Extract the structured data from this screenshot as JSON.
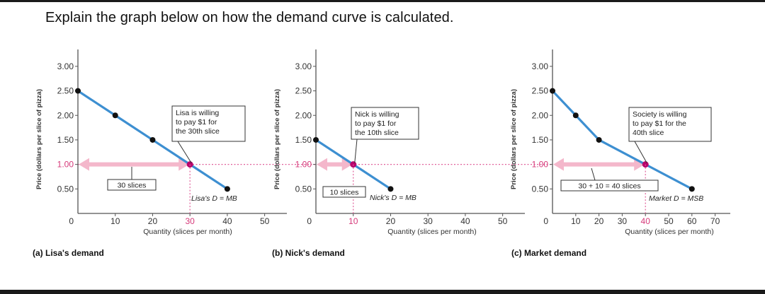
{
  "question": "Explain the graph below on how the demand curve is calculated.",
  "colors": {
    "curve": "#3d8fd1",
    "point": "#111111",
    "highlight_point": "#b8006b",
    "arrow": "#f4b7cb",
    "price_line": "#e0609a",
    "price_label": "#d63a7a",
    "quantity_highlight": "#d63a7a"
  },
  "chart_data": [
    {
      "type": "line",
      "panel_label": "(a) Lisa's demand",
      "ylabel": "Price (dollars per slice of pizza)",
      "xlabel": "Quantity (slices per month)",
      "xlim": [
        0,
        55
      ],
      "ylim": [
        0,
        3.2
      ],
      "yticks": [
        "3.00",
        "2.50",
        "2.00",
        "1.50",
        "1.00",
        "0.50",
        "0"
      ],
      "xticks": [
        "10",
        "20",
        "30",
        "40",
        "50"
      ],
      "highlight_xtick": "30",
      "highlight_ytick": "1.00",
      "series": [
        {
          "x": [
            0,
            10,
            20,
            30,
            40
          ],
          "y": [
            2.5,
            2.0,
            1.5,
            1.0,
            0.5
          ]
        }
      ],
      "highlight_point": {
        "x": 30,
        "y": 1.0
      },
      "arrow_label": "30 slices",
      "curve_label": "Lisa's D = MB",
      "callout": [
        "Lisa is willing",
        "to pay $1 for",
        "the 30th slice"
      ]
    },
    {
      "type": "line",
      "panel_label": "(b) Nick's demand",
      "ylabel": "Price (dollars per slice of pizza)",
      "xlabel": "Quantity (slices per month)",
      "xlim": [
        0,
        55
      ],
      "ylim": [
        0,
        3.2
      ],
      "yticks": [
        "3.00",
        "2.50",
        "2.00",
        "1.50",
        "1.00",
        "0.50",
        "0"
      ],
      "xticks": [
        "10",
        "20",
        "30",
        "40",
        "50"
      ],
      "highlight_xtick": "10",
      "highlight_ytick": "1.00",
      "series": [
        {
          "x": [
            0,
            10,
            20
          ],
          "y": [
            1.5,
            1.0,
            0.5
          ]
        }
      ],
      "highlight_point": {
        "x": 10,
        "y": 1.0
      },
      "arrow_label": "10 slices",
      "curve_label": "Nick's D = MB",
      "callout": [
        "Nick is willing",
        "to pay $1 for",
        "the 10th slice"
      ]
    },
    {
      "type": "line",
      "panel_label": "(c) Market demand",
      "ylabel": "Price (dollars per slice of pizza)",
      "xlabel": "Quantity (slices per month)",
      "xlim": [
        0,
        75
      ],
      "ylim": [
        0,
        3.2
      ],
      "yticks": [
        "3.00",
        "2.50",
        "2.00",
        "1.50",
        "1.00",
        "0.50",
        "0"
      ],
      "xticks": [
        "10",
        "20",
        "30",
        "40",
        "50",
        "60",
        "70"
      ],
      "highlight_xtick": "40",
      "highlight_ytick": "1.00",
      "series": [
        {
          "x": [
            0,
            10,
            20,
            40,
            60
          ],
          "y": [
            2.5,
            2.0,
            1.5,
            1.0,
            0.5
          ]
        }
      ],
      "highlight_point": {
        "x": 40,
        "y": 1.0
      },
      "arrow_label": "30 + 10 = 40 slices",
      "curve_label": "Market D = MSB",
      "callout": [
        "Society is willing",
        "to pay $1 for the",
        "40th slice"
      ]
    }
  ]
}
